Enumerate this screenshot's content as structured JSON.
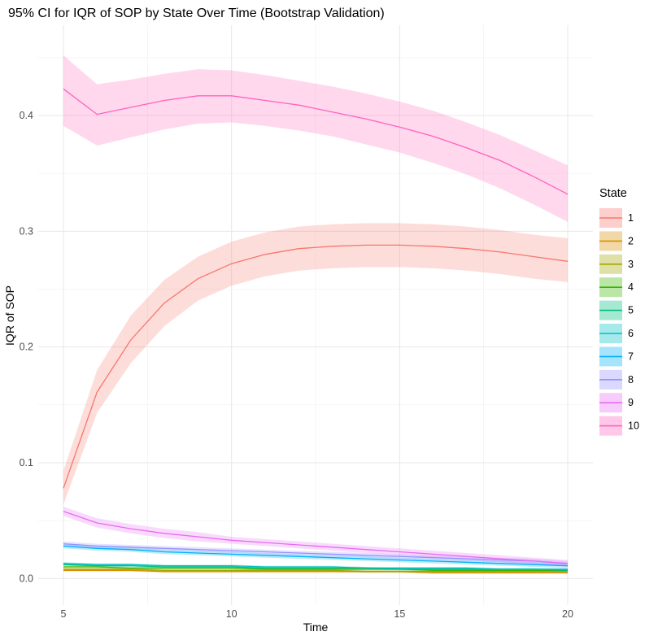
{
  "chart_data": {
    "type": "line",
    "title": "95% CI for IQR of SOP by State Over Time (Bootstrap Validation)",
    "xlabel": "Time",
    "ylabel": "IQR of SOP",
    "legend_title": "State",
    "legend_position": "right",
    "grid": true,
    "has_ci_ribbons": true,
    "x_domain": [
      4.25,
      20.75
    ],
    "y_domain": [
      -0.023,
      0.478
    ],
    "x_tick_values": [
      5,
      10,
      15,
      20
    ],
    "x_tick_labels": [
      "5",
      "10",
      "15",
      "20"
    ],
    "y_tick_values": [
      0.0,
      0.1,
      0.2,
      0.3,
      0.4
    ],
    "y_tick_labels": [
      "0.0",
      "0.1",
      "0.2",
      "0.3",
      "0.4"
    ],
    "x": [
      5,
      6,
      7,
      8,
      9,
      10,
      11,
      12,
      13,
      14,
      15,
      16,
      17,
      18,
      19,
      20
    ],
    "series": [
      {
        "name": "1",
        "color": "#F8766D",
        "values": [
          0.078,
          0.161,
          0.206,
          0.238,
          0.259,
          0.272,
          0.28,
          0.285,
          0.287,
          0.288,
          0.288,
          0.287,
          0.285,
          0.282,
          0.278,
          0.274
        ],
        "lower": [
          0.064,
          0.143,
          0.186,
          0.218,
          0.24,
          0.253,
          0.261,
          0.266,
          0.268,
          0.269,
          0.269,
          0.268,
          0.266,
          0.263,
          0.259,
          0.256
        ],
        "upper": [
          0.093,
          0.18,
          0.227,
          0.258,
          0.278,
          0.291,
          0.299,
          0.304,
          0.306,
          0.307,
          0.307,
          0.306,
          0.304,
          0.301,
          0.297,
          0.294
        ]
      },
      {
        "name": "2",
        "color": "#D89000",
        "values": [
          0.007,
          0.007,
          0.007,
          0.006,
          0.006,
          0.006,
          0.006,
          0.006,
          0.006,
          0.006,
          0.006,
          0.005,
          0.005,
          0.005,
          0.005,
          0.005
        ],
        "lower": [
          0.006,
          0.006,
          0.006,
          0.005,
          0.005,
          0.005,
          0.005,
          0.005,
          0.005,
          0.005,
          0.005,
          0.004,
          0.004,
          0.004,
          0.004,
          0.004
        ],
        "upper": [
          0.008,
          0.008,
          0.008,
          0.007,
          0.007,
          0.007,
          0.007,
          0.007,
          0.007,
          0.007,
          0.007,
          0.006,
          0.006,
          0.006,
          0.006,
          0.006
        ]
      },
      {
        "name": "3",
        "color": "#A3A500",
        "values": [
          0.008,
          0.008,
          0.008,
          0.007,
          0.007,
          0.007,
          0.007,
          0.007,
          0.007,
          0.006,
          0.006,
          0.006,
          0.006,
          0.006,
          0.006,
          0.006
        ],
        "lower": [
          0.007,
          0.007,
          0.007,
          0.006,
          0.006,
          0.006,
          0.006,
          0.006,
          0.006,
          0.005,
          0.005,
          0.005,
          0.005,
          0.005,
          0.005,
          0.005
        ],
        "upper": [
          0.009,
          0.009,
          0.009,
          0.008,
          0.008,
          0.008,
          0.008,
          0.008,
          0.008,
          0.007,
          0.007,
          0.007,
          0.007,
          0.007,
          0.007,
          0.007
        ]
      },
      {
        "name": "4",
        "color": "#39B600",
        "values": [
          0.01,
          0.01,
          0.009,
          0.009,
          0.009,
          0.009,
          0.008,
          0.008,
          0.008,
          0.008,
          0.008,
          0.007,
          0.007,
          0.007,
          0.007,
          0.007
        ],
        "lower": [
          0.009,
          0.009,
          0.008,
          0.008,
          0.008,
          0.008,
          0.007,
          0.007,
          0.007,
          0.007,
          0.007,
          0.006,
          0.006,
          0.006,
          0.006,
          0.006
        ],
        "upper": [
          0.011,
          0.011,
          0.01,
          0.01,
          0.01,
          0.01,
          0.009,
          0.009,
          0.009,
          0.009,
          0.009,
          0.008,
          0.008,
          0.008,
          0.008,
          0.008
        ]
      },
      {
        "name": "5",
        "color": "#00BF7D",
        "values": [
          0.012,
          0.011,
          0.011,
          0.01,
          0.01,
          0.01,
          0.009,
          0.009,
          0.009,
          0.009,
          0.008,
          0.008,
          0.008,
          0.008,
          0.008,
          0.007
        ],
        "lower": [
          0.011,
          0.01,
          0.01,
          0.009,
          0.009,
          0.009,
          0.008,
          0.008,
          0.008,
          0.008,
          0.007,
          0.007,
          0.007,
          0.007,
          0.007,
          0.006
        ],
        "upper": [
          0.013,
          0.012,
          0.012,
          0.011,
          0.011,
          0.011,
          0.01,
          0.01,
          0.01,
          0.01,
          0.009,
          0.009,
          0.009,
          0.009,
          0.009,
          0.008
        ]
      },
      {
        "name": "6",
        "color": "#00BFC4",
        "values": [
          0.013,
          0.012,
          0.012,
          0.011,
          0.011,
          0.011,
          0.01,
          0.01,
          0.01,
          0.009,
          0.009,
          0.009,
          0.009,
          0.008,
          0.008,
          0.008
        ],
        "lower": [
          0.012,
          0.011,
          0.011,
          0.01,
          0.01,
          0.01,
          0.009,
          0.009,
          0.009,
          0.008,
          0.008,
          0.008,
          0.008,
          0.007,
          0.007,
          0.007
        ],
        "upper": [
          0.014,
          0.013,
          0.013,
          0.012,
          0.012,
          0.012,
          0.011,
          0.011,
          0.011,
          0.01,
          0.01,
          0.01,
          0.01,
          0.009,
          0.009,
          0.009
        ]
      },
      {
        "name": "7",
        "color": "#00B0F6",
        "values": [
          0.028,
          0.026,
          0.025,
          0.023,
          0.022,
          0.021,
          0.02,
          0.019,
          0.018,
          0.017,
          0.016,
          0.015,
          0.014,
          0.013,
          0.012,
          0.011
        ],
        "lower": [
          0.026,
          0.024,
          0.023,
          0.021,
          0.02,
          0.019,
          0.018,
          0.017,
          0.016,
          0.015,
          0.014,
          0.013,
          0.012,
          0.011,
          0.01,
          0.009
        ],
        "upper": [
          0.03,
          0.028,
          0.027,
          0.025,
          0.024,
          0.023,
          0.022,
          0.021,
          0.02,
          0.019,
          0.018,
          0.017,
          0.016,
          0.015,
          0.014,
          0.013
        ]
      },
      {
        "name": "8",
        "color": "#9590FF",
        "values": [
          0.03,
          0.028,
          0.027,
          0.026,
          0.025,
          0.024,
          0.023,
          0.022,
          0.021,
          0.02,
          0.019,
          0.018,
          0.017,
          0.016,
          0.015,
          0.013
        ],
        "lower": [
          0.028,
          0.026,
          0.025,
          0.024,
          0.023,
          0.022,
          0.021,
          0.02,
          0.019,
          0.018,
          0.017,
          0.016,
          0.015,
          0.014,
          0.013,
          0.011
        ],
        "upper": [
          0.032,
          0.03,
          0.029,
          0.028,
          0.027,
          0.026,
          0.025,
          0.024,
          0.023,
          0.022,
          0.021,
          0.02,
          0.019,
          0.018,
          0.017,
          0.015
        ]
      },
      {
        "name": "9",
        "color": "#E76BF3",
        "values": [
          0.058,
          0.048,
          0.043,
          0.039,
          0.036,
          0.033,
          0.031,
          0.029,
          0.027,
          0.025,
          0.023,
          0.021,
          0.019,
          0.017,
          0.015,
          0.013
        ],
        "lower": [
          0.054,
          0.044,
          0.039,
          0.035,
          0.032,
          0.03,
          0.028,
          0.026,
          0.024,
          0.022,
          0.02,
          0.018,
          0.016,
          0.014,
          0.012,
          0.01
        ],
        "upper": [
          0.062,
          0.052,
          0.047,
          0.043,
          0.04,
          0.036,
          0.034,
          0.032,
          0.03,
          0.028,
          0.026,
          0.024,
          0.022,
          0.02,
          0.018,
          0.016
        ]
      },
      {
        "name": "10",
        "color": "#FF62BC",
        "values": [
          0.423,
          0.401,
          0.407,
          0.413,
          0.417,
          0.417,
          0.413,
          0.409,
          0.403,
          0.397,
          0.39,
          0.382,
          0.372,
          0.361,
          0.347,
          0.332
        ],
        "lower": [
          0.391,
          0.374,
          0.381,
          0.388,
          0.393,
          0.394,
          0.391,
          0.387,
          0.382,
          0.375,
          0.368,
          0.359,
          0.349,
          0.337,
          0.323,
          0.308
        ],
        "upper": [
          0.452,
          0.427,
          0.431,
          0.436,
          0.44,
          0.439,
          0.435,
          0.43,
          0.425,
          0.419,
          0.412,
          0.404,
          0.394,
          0.383,
          0.37,
          0.357
        ]
      }
    ]
  }
}
